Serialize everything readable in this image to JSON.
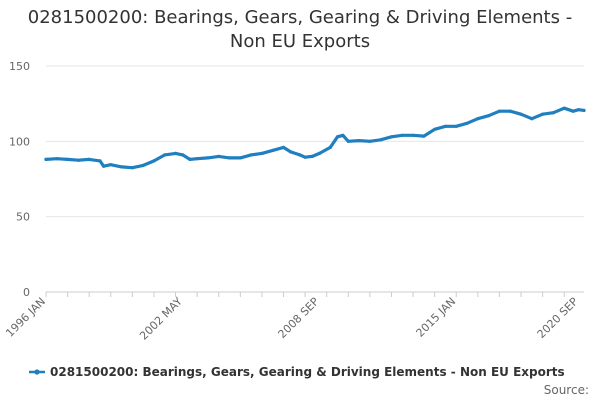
{
  "chart_data": {
    "type": "line",
    "title_line1": "0281500200: Bearings, Gears, Gearing & Driving Elements -",
    "title_line2": "Non EU Exports",
    "xlabel": "",
    "ylabel": "",
    "ylim": [
      0,
      150
    ],
    "y_ticks": [
      "0",
      "50",
      "100",
      "150"
    ],
    "x_ticks": [
      "1996 JAN",
      "2002 MAY",
      "2008 SEP",
      "2015 JAN",
      "2020 SEP"
    ],
    "x_range": [
      "1996-01",
      "2020-12"
    ],
    "grid": "horizontal",
    "legend_position": "bottom",
    "series": [
      {
        "name": "0281500200: Bearings, Gears, Gearing & Driving Elements - Non EU Exports",
        "color": "#1f7fbf",
        "points": [
          [
            "1996-01",
            88
          ],
          [
            "1996-07",
            88.5
          ],
          [
            "1997-01",
            88
          ],
          [
            "1997-07",
            87.5
          ],
          [
            "1998-01",
            88
          ],
          [
            "1998-07",
            87
          ],
          [
            "1998-09",
            83.5
          ],
          [
            "1999-01",
            84.5
          ],
          [
            "1999-07",
            83
          ],
          [
            "2000-01",
            82.5
          ],
          [
            "2000-07",
            84
          ],
          [
            "2001-01",
            87
          ],
          [
            "2001-07",
            91
          ],
          [
            "2002-01",
            92
          ],
          [
            "2002-05",
            91
          ],
          [
            "2002-09",
            88
          ],
          [
            "2003-01",
            88.5
          ],
          [
            "2003-07",
            89
          ],
          [
            "2004-01",
            90
          ],
          [
            "2004-07",
            89
          ],
          [
            "2005-01",
            89
          ],
          [
            "2005-07",
            91
          ],
          [
            "2006-01",
            92
          ],
          [
            "2006-07",
            94
          ],
          [
            "2007-01",
            96
          ],
          [
            "2007-05",
            93
          ],
          [
            "2007-10",
            91
          ],
          [
            "2008-01",
            89.5
          ],
          [
            "2008-05",
            90
          ],
          [
            "2008-09",
            92
          ],
          [
            "2009-03",
            96
          ],
          [
            "2009-07",
            103
          ],
          [
            "2009-10",
            104
          ],
          [
            "2010-01",
            100
          ],
          [
            "2010-07",
            100.5
          ],
          [
            "2011-01",
            100
          ],
          [
            "2011-07",
            101
          ],
          [
            "2012-01",
            103
          ],
          [
            "2012-07",
            104
          ],
          [
            "2013-01",
            104
          ],
          [
            "2013-07",
            103.5
          ],
          [
            "2014-01",
            108
          ],
          [
            "2014-07",
            110
          ],
          [
            "2015-01",
            110
          ],
          [
            "2015-07",
            112
          ],
          [
            "2016-01",
            115
          ],
          [
            "2016-07",
            117
          ],
          [
            "2017-01",
            120
          ],
          [
            "2017-07",
            120
          ],
          [
            "2018-01",
            118
          ],
          [
            "2018-07",
            115
          ],
          [
            "2019-01",
            118
          ],
          [
            "2019-07",
            119
          ],
          [
            "2020-01",
            122
          ],
          [
            "2020-06",
            120
          ],
          [
            "2020-09",
            121
          ],
          [
            "2020-12",
            120.5
          ]
        ]
      }
    ]
  },
  "footer": {
    "source_label": "Source:"
  }
}
